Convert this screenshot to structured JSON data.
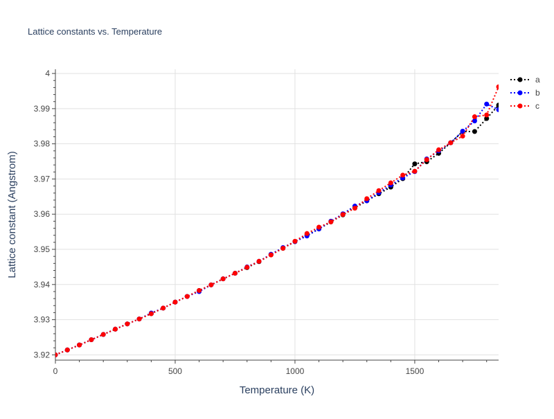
{
  "chart_data": {
    "type": "line",
    "title": "Lattice constants vs. Temperature",
    "xlabel": "Temperature (K)",
    "ylabel": "Lattice constant (Angstrom)",
    "xlim": [
      0,
      1850
    ],
    "ylim": [
      3.9185,
      4.0012
    ],
    "xticks": [
      0,
      500,
      1000,
      1500
    ],
    "xtick_labels": [
      "0",
      "500",
      "1000",
      "1500"
    ],
    "yticks": [
      3.92,
      3.93,
      3.94,
      3.95,
      3.96,
      3.97,
      3.98,
      3.99,
      4.0
    ],
    "ytick_labels": [
      "3.92",
      "3.93",
      "3.94",
      "3.95",
      "3.96",
      "3.97",
      "3.98",
      "3.99",
      "4"
    ],
    "grid": true,
    "legend_position": "top-right",
    "line_style": "dotted with markers",
    "x": [
      0,
      50,
      100,
      150,
      200,
      250,
      300,
      350,
      400,
      450,
      500,
      550,
      600,
      650,
      700,
      750,
      800,
      850,
      900,
      950,
      1000,
      1050,
      1100,
      1150,
      1200,
      1250,
      1300,
      1350,
      1400,
      1450,
      1500,
      1550,
      1600,
      1650,
      1700,
      1750,
      1800,
      1850
    ],
    "series": [
      {
        "name": "a",
        "color": "#000000",
        "values": [
          3.92,
          3.9214,
          3.9228,
          3.9243,
          3.9258,
          3.9273,
          3.9288,
          3.9302,
          3.9317,
          3.9333,
          3.935,
          3.9366,
          3.9383,
          3.9399,
          3.9416,
          3.9432,
          3.9448,
          3.9465,
          3.9485,
          3.9503,
          3.9522,
          3.954,
          3.9558,
          3.9578,
          3.9598,
          3.9618,
          3.9638,
          3.9658,
          3.9677,
          3.9701,
          3.9743,
          3.9749,
          3.9773,
          3.9803,
          3.9835,
          3.9835,
          3.9872,
          3.991
        ]
      },
      {
        "name": "b",
        "color": "#0000ff",
        "values": [
          3.92,
          3.9214,
          3.9228,
          3.9243,
          3.9258,
          3.9273,
          3.9288,
          3.9302,
          3.9319,
          3.9333,
          3.935,
          3.9366,
          3.938,
          3.9399,
          3.9416,
          3.9432,
          3.945,
          3.9466,
          3.9486,
          3.9505,
          3.9522,
          3.9538,
          3.9558,
          3.958,
          3.9601,
          3.9623,
          3.9638,
          3.9661,
          3.9683,
          3.9703,
          3.9721,
          3.9757,
          3.978,
          3.9803,
          3.9836,
          3.9865,
          3.9913,
          3.9897
        ]
      },
      {
        "name": "c",
        "color": "#ff0000",
        "values": [
          3.92,
          3.9214,
          3.9228,
          3.9243,
          3.9258,
          3.9273,
          3.9288,
          3.9302,
          3.9317,
          3.9333,
          3.935,
          3.9366,
          3.9383,
          3.9399,
          3.9416,
          3.9432,
          3.9449,
          3.9466,
          3.9484,
          3.9503,
          3.9523,
          3.9545,
          3.9563,
          3.9578,
          3.9599,
          3.9617,
          3.9644,
          3.9667,
          3.9689,
          3.9711,
          3.9722,
          3.9755,
          3.9783,
          3.9803,
          3.9822,
          3.9877,
          3.9882,
          3.9962
        ]
      }
    ]
  }
}
